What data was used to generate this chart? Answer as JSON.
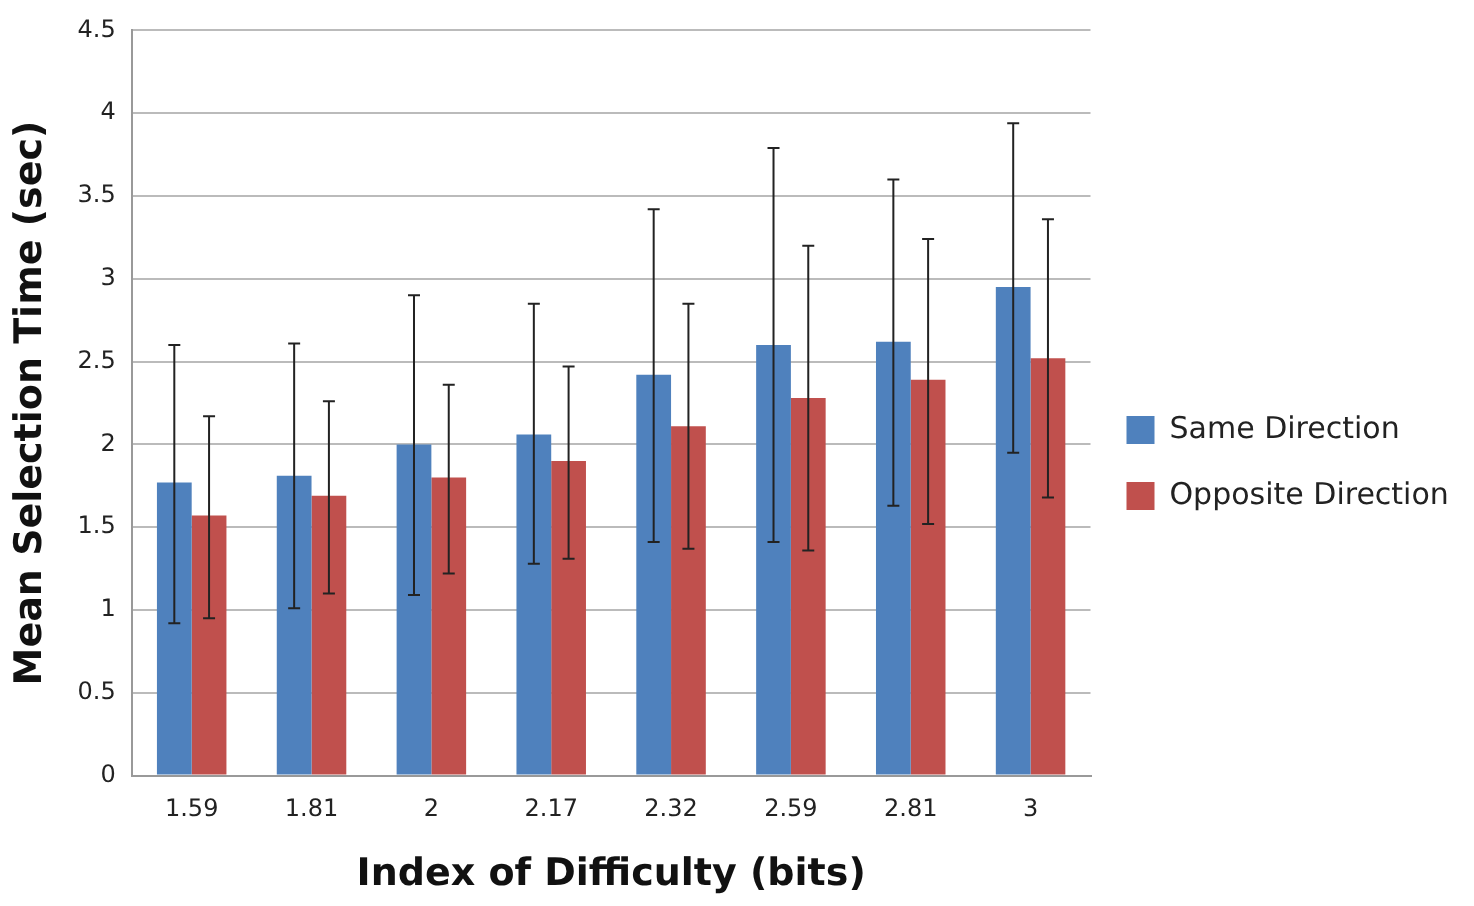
{
  "chart_data": {
    "type": "bar",
    "xlabel": "Index of Difficulty (bits)",
    "ylabel": "Mean Selection Time (sec)",
    "categories": [
      "1.59",
      "1.81",
      "2",
      "2.17",
      "2.32",
      "2.59",
      "2.81",
      "3"
    ],
    "series": [
      {
        "name": "Same Direction",
        "color": "#4f81bd",
        "values": [
          1.77,
          1.81,
          2.0,
          2.06,
          2.42,
          2.6,
          2.62,
          2.95
        ],
        "errors": [
          [
            0.92,
            2.6
          ],
          [
            1.01,
            2.61
          ],
          [
            1.09,
            2.9
          ],
          [
            1.28,
            2.85
          ],
          [
            1.41,
            3.42
          ],
          [
            1.41,
            3.79
          ],
          [
            1.63,
            3.6
          ],
          [
            1.95,
            3.94
          ]
        ]
      },
      {
        "name": "Opposite Direction",
        "color": "#c0504d",
        "values": [
          1.57,
          1.69,
          1.8,
          1.9,
          2.11,
          2.28,
          2.39,
          2.52
        ],
        "errors": [
          [
            0.95,
            2.17
          ],
          [
            1.1,
            2.26
          ],
          [
            1.22,
            2.36
          ],
          [
            1.31,
            2.47
          ],
          [
            1.37,
            2.85
          ],
          [
            1.36,
            3.2
          ],
          [
            1.52,
            3.24
          ],
          [
            1.68,
            3.36
          ]
        ]
      }
    ],
    "ylim": [
      0,
      4.5
    ],
    "yticks": [
      0,
      0.5,
      1,
      1.5,
      2,
      2.5,
      3,
      3.5,
      4,
      4.5
    ],
    "grid": "y",
    "legend": "right"
  }
}
